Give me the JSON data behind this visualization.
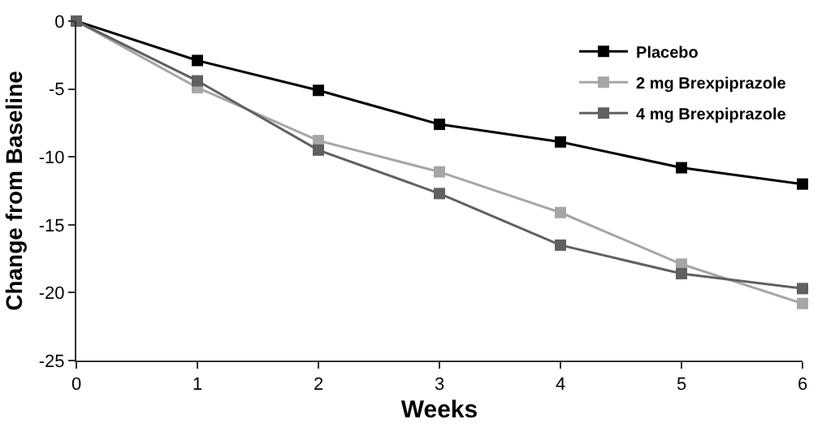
{
  "chart_data": {
    "type": "line",
    "xlabel": "Weeks",
    "ylabel": "Change from Baseline",
    "x": [
      0,
      1,
      2,
      3,
      4,
      5,
      6
    ],
    "series": [
      {
        "name": "Placebo",
        "color": "#000000",
        "values": [
          0,
          -2.9,
          -5.1,
          -7.6,
          -8.9,
          -10.8,
          -12.0
        ]
      },
      {
        "name": "2 mg Brexpiprazole",
        "color": "#a6a6a6",
        "values": [
          0,
          -4.9,
          -8.8,
          -11.1,
          -14.1,
          -17.9,
          -20.8
        ]
      },
      {
        "name": "4 mg Brexpiprazole",
        "color": "#606060",
        "values": [
          0,
          -4.4,
          -9.5,
          -12.7,
          -16.5,
          -18.6,
          -19.7
        ]
      }
    ],
    "xlim": [
      0,
      6
    ],
    "xticks": [
      0,
      1,
      2,
      3,
      4,
      5,
      6
    ],
    "ylim": [
      -25,
      0
    ],
    "yticks": [
      -25,
      -20,
      -15,
      -10,
      -5,
      0
    ],
    "legend": "top right",
    "marker": "square",
    "line_style": "solid"
  }
}
